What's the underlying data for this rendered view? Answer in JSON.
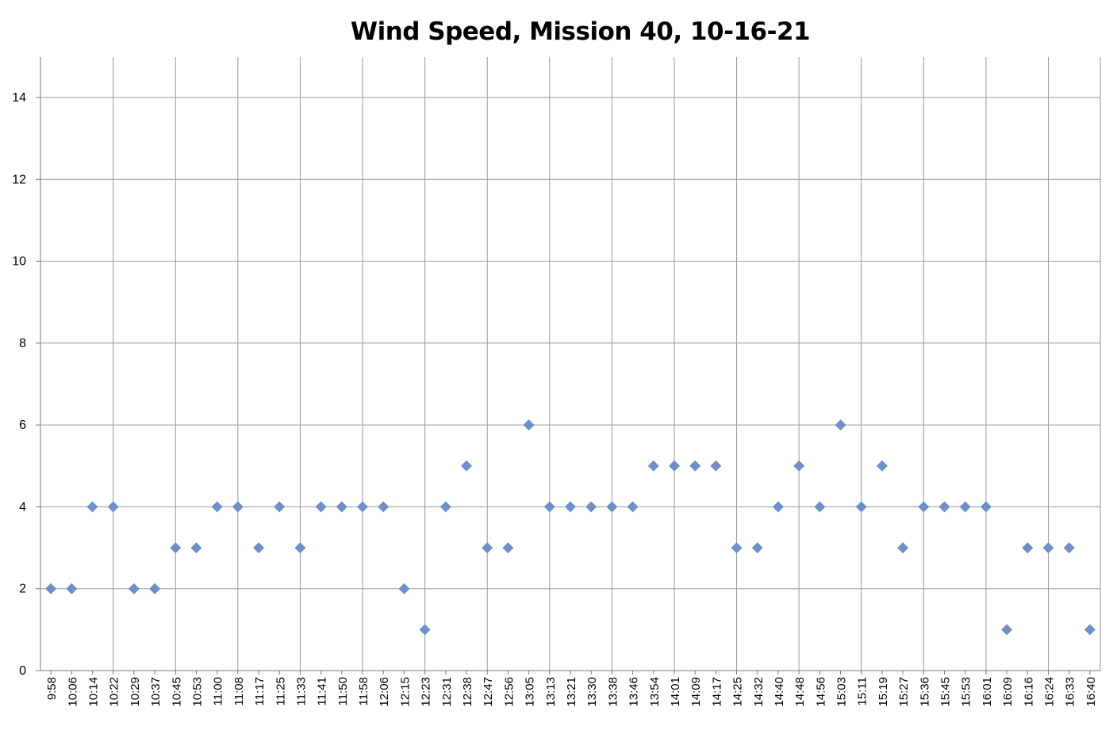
{
  "chart_data": {
    "type": "scatter",
    "title": "Wind Speed, Mission 40, 10-16-21",
    "xlabel": "",
    "ylabel": "",
    "ylim": [
      0,
      14
    ],
    "yticks": [
      0,
      2,
      4,
      6,
      8,
      10,
      12,
      14
    ],
    "grid": true,
    "legend": "none",
    "marker": "diamond",
    "marker_color": "#6f8fc7",
    "x_tick_labels": [
      "9:58",
      "10:06",
      "10:14",
      "10:22",
      "10:29",
      "10:37",
      "10:45",
      "10:53",
      "11:00",
      "11:08",
      "11:17",
      "11:25",
      "11:33",
      "11:41",
      "11:50",
      "11:58",
      "12:06",
      "12:15",
      "12:23",
      "12:31",
      "12:38",
      "12:47",
      "12:56",
      "13:05",
      "13:13",
      "13:21",
      "13:30",
      "13:38",
      "13:46",
      "13:54",
      "14:01",
      "14:09",
      "14:17",
      "14:25",
      "14:32",
      "14:40",
      "14:48",
      "14:56",
      "15:03",
      "15:11",
      "15:19",
      "15:27",
      "15:36",
      "15:45",
      "15:53",
      "16:01",
      "16:09",
      "16:16",
      "16:24",
      "16:33",
      "16:40"
    ],
    "series": [
      {
        "x": [
          "9:58",
          "10:06",
          "10:14",
          "10:22",
          "10:29",
          "10:37",
          "10:45",
          "10:53",
          "11:00",
          "11:08",
          "11:17",
          "11:25",
          "11:33",
          "11:41",
          "11:50",
          "11:58",
          "12:06",
          "12:15",
          "12:23",
          "12:31",
          "12:38",
          "12:47",
          "12:56",
          "13:05",
          "13:13",
          "13:21",
          "13:30",
          "13:38",
          "13:46",
          "13:54",
          "14:01",
          "14:09",
          "14:17",
          "14:25",
          "14:32",
          "14:40",
          "14:48",
          "14:56",
          "15:03",
          "15:11",
          "15:19",
          "15:27",
          "15:36",
          "15:45",
          "15:53",
          "16:01",
          "16:09",
          "16:16",
          "16:24",
          "16:33",
          "16:40"
        ],
        "y": [
          2,
          2,
          4,
          4,
          2,
          2,
          3,
          3,
          4,
          4,
          3,
          4,
          3,
          4,
          4,
          4,
          4,
          2,
          1,
          4,
          5,
          3,
          3,
          6,
          4,
          4,
          4,
          4,
          4,
          5,
          5,
          5,
          5,
          3,
          3,
          4,
          5,
          4,
          6,
          4,
          5,
          3,
          4,
          4,
          4,
          4,
          1,
          3,
          3,
          3,
          1
        ]
      }
    ]
  }
}
